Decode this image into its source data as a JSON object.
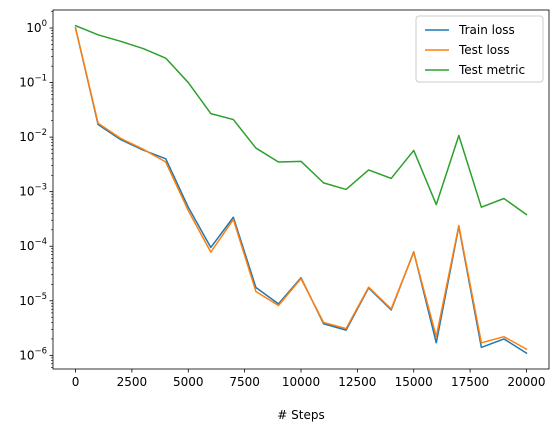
{
  "chart_data": {
    "type": "line",
    "xlabel": "# Steps",
    "ylabel": "",
    "yscale": "log",
    "xlim": [
      -1000,
      21000
    ],
    "ylim_log10": [
      -6.25,
      0.33
    ],
    "grid": false,
    "legend_position": "top-right",
    "x_ticks": [
      0,
      2500,
      5000,
      7500,
      10000,
      12500,
      15000,
      17500,
      20000
    ],
    "x_tick_labels": [
      "0",
      "2500",
      "5000",
      "7500",
      "10000",
      "12500",
      "15000",
      "17500",
      "20000"
    ],
    "y_tick_exponents": [
      0,
      -1,
      -2,
      -3,
      -4,
      -5,
      -6
    ],
    "x": [
      0,
      1000,
      2000,
      3000,
      4000,
      5000,
      6000,
      7000,
      8000,
      9000,
      10000,
      11000,
      12000,
      13000,
      14000,
      15000,
      16000,
      17000,
      18000,
      19000,
      20000
    ],
    "series": [
      {
        "name": "Train loss",
        "color": "#1f77b4",
        "values": [
          1.0,
          0.017,
          0.009,
          0.0058,
          0.004,
          0.00052,
          9.5e-05,
          0.00034,
          1.75e-05,
          8.8e-06,
          2.65e-05,
          3.8e-06,
          2.9e-06,
          1.72e-05,
          6.8e-06,
          7.9e-05,
          1.7e-06,
          0.00023,
          1.4e-06,
          2e-06,
          1.1e-06
        ]
      },
      {
        "name": "Test loss",
        "color": "#ff7f0e",
        "values": [
          1.0,
          0.018,
          0.0095,
          0.006,
          0.0035,
          0.00045,
          7.8e-05,
          0.00031,
          1.48e-05,
          8.2e-06,
          2.55e-05,
          4e-06,
          3.1e-06,
          1.78e-05,
          7.1e-06,
          7.75e-05,
          2.2e-06,
          0.00024,
          1.7e-06,
          2.2e-06,
          1.3e-06
        ]
      },
      {
        "name": "Test metric",
        "color": "#2ca02c",
        "values": [
          1.1,
          0.75,
          0.57,
          0.42,
          0.28,
          0.1,
          0.027,
          0.021,
          0.0063,
          0.0035,
          0.0036,
          0.00145,
          0.0011,
          0.0025,
          0.00175,
          0.0057,
          0.00058,
          0.0107,
          0.00052,
          0.00075,
          0.00038
        ]
      }
    ]
  }
}
